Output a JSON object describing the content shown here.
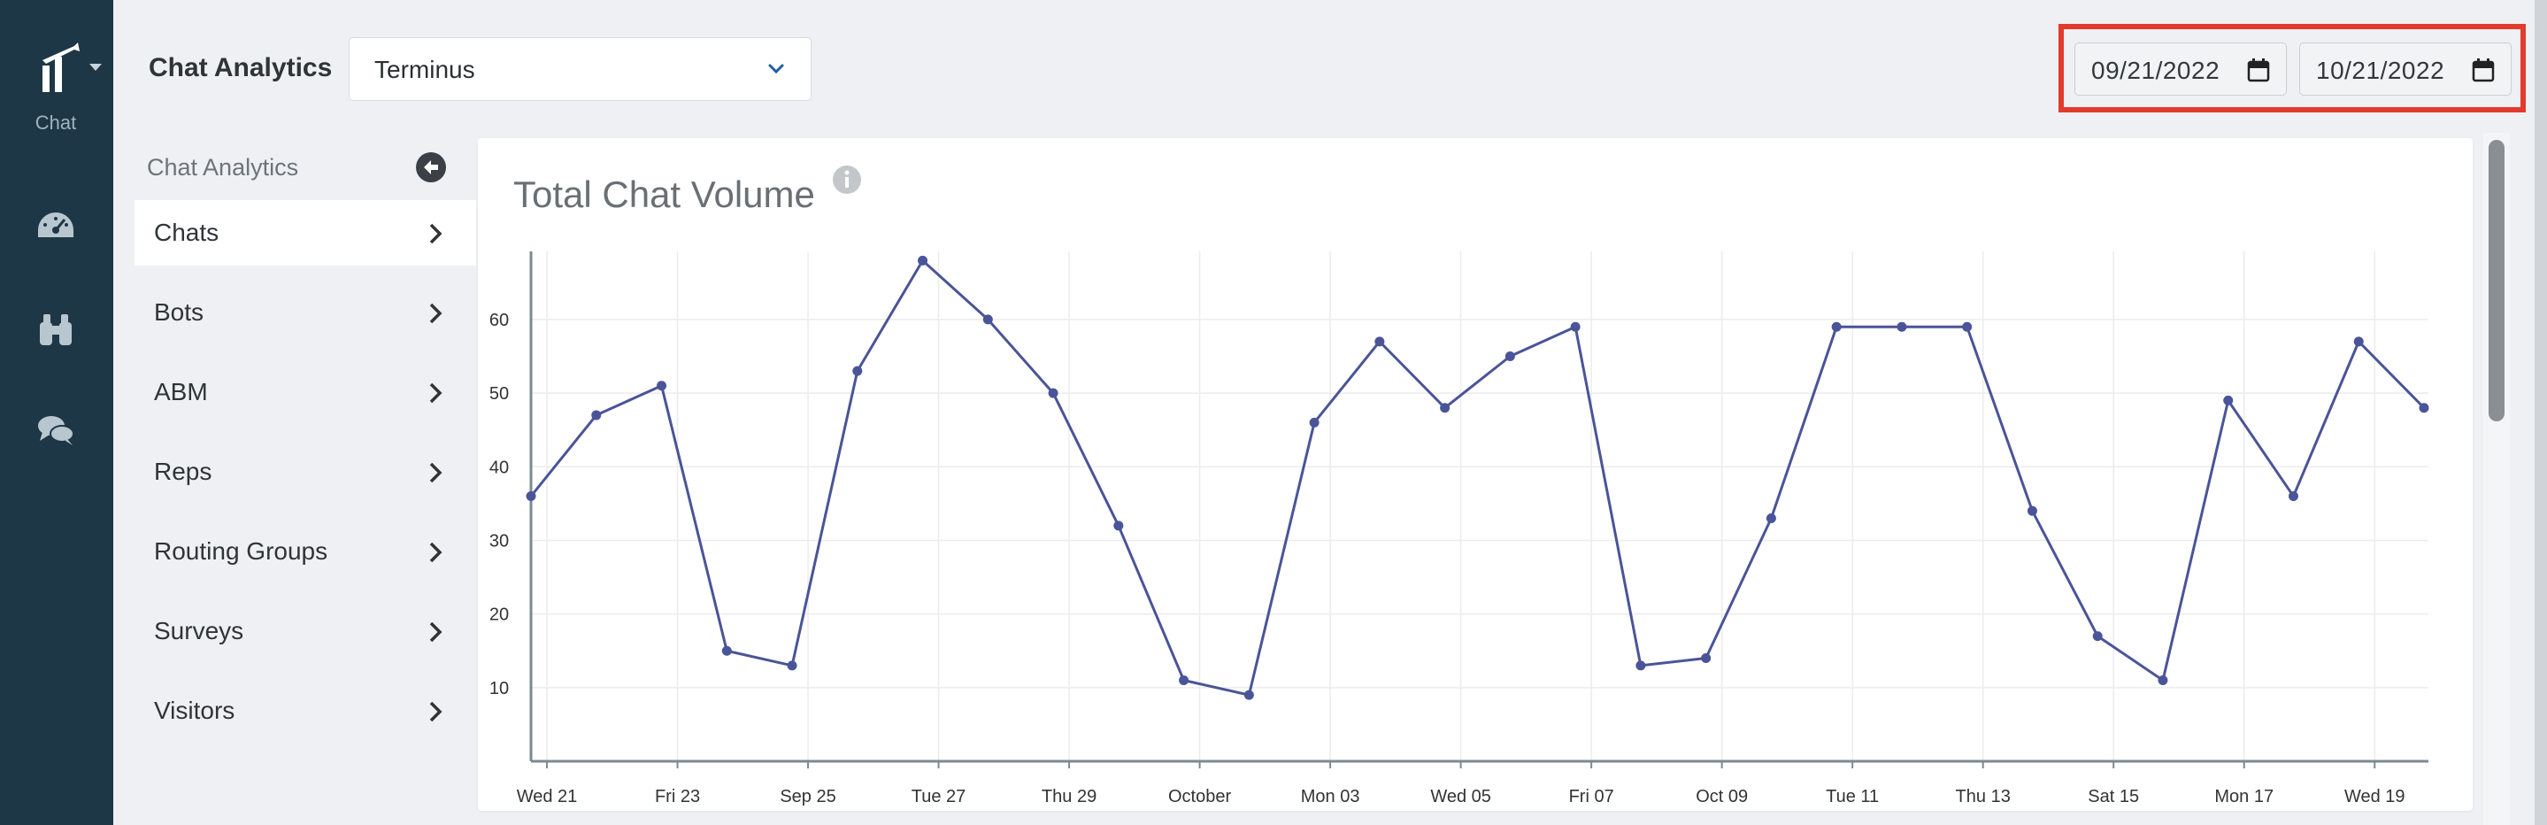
{
  "rail": {
    "app_label": "Chat",
    "icons": [
      "speedometer-icon",
      "binoculars-icon",
      "chat-bubbles-icon"
    ]
  },
  "header": {
    "title": "Chat Analytics",
    "team_select": "Terminus",
    "start_date": "09/21/2022",
    "end_date": "10/21/2022",
    "highlight_color": "#e23b2c"
  },
  "sub_nav": {
    "title": "Chat Analytics",
    "items": [
      {
        "label": "Chats",
        "active": true
      },
      {
        "label": "Bots"
      },
      {
        "label": "ABM"
      },
      {
        "label": "Reps"
      },
      {
        "label": "Routing Groups"
      },
      {
        "label": "Surveys"
      },
      {
        "label": "Visitors"
      }
    ]
  },
  "card": {
    "title": "Total Chat Volume"
  },
  "chart_data": {
    "type": "line",
    "title": "Total Chat Volume",
    "xlabel": "",
    "ylabel": "",
    "ylim": [
      0,
      68
    ],
    "yticks": [
      10,
      20,
      30,
      40,
      50,
      60
    ],
    "grid": true,
    "line_color": "#4a5498",
    "x_tick_labels": [
      "Wed 21",
      "Fri 23",
      "Sep 25",
      "Tue 27",
      "Thu 29",
      "October",
      "Mon 03",
      "Wed 05",
      "Fri 07",
      "Oct 09",
      "Tue 11",
      "Thu 13",
      "Sat 15",
      "Mon 17",
      "Wed 19"
    ],
    "x": [
      "2022-09-21",
      "2022-09-22",
      "2022-09-23",
      "2022-09-24",
      "2022-09-25",
      "2022-09-26",
      "2022-09-27",
      "2022-09-28",
      "2022-09-29",
      "2022-09-30",
      "2022-10-01",
      "2022-10-02",
      "2022-10-03",
      "2022-10-04",
      "2022-10-05",
      "2022-10-06",
      "2022-10-07",
      "2022-10-08",
      "2022-10-09",
      "2022-10-10",
      "2022-10-11",
      "2022-10-12",
      "2022-10-13",
      "2022-10-14",
      "2022-10-15",
      "2022-10-16",
      "2022-10-17",
      "2022-10-18",
      "2022-10-19",
      "2022-10-20"
    ],
    "series": [
      {
        "values": [
          36,
          47,
          51,
          15,
          13,
          53,
          68,
          60,
          50,
          32,
          11,
          9,
          46,
          57,
          48,
          55,
          59,
          13,
          14,
          33,
          59,
          59,
          59,
          34,
          17,
          11,
          49,
          36,
          57,
          48
        ]
      }
    ]
  }
}
